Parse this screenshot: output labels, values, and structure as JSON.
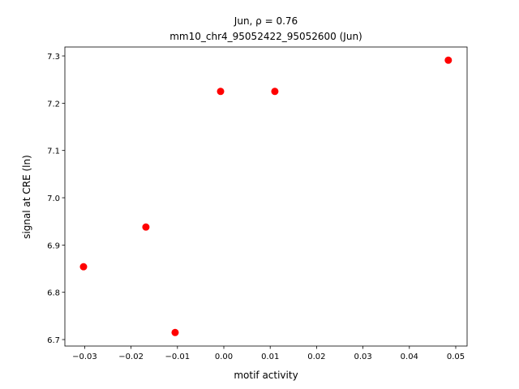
{
  "chart_data": {
    "type": "scatter",
    "title": "Jun, ρ = 0.76",
    "subtitle": "mm10_chr4_95052422_95052600 (Jun)",
    "x_label": "motif activity",
    "y_label": "signal at CRE (ln)",
    "series": [
      {
        "color": "#ff0000",
        "x": [
          -0.03025,
          -0.0168,
          -0.0105,
          -0.0007,
          0.011,
          0.0484
        ],
        "values": [
          6.854,
          6.938,
          6.715,
          7.225,
          7.225,
          7.291
        ]
      }
    ],
    "xlim": [
      -0.03427,
      0.05245
    ],
    "xticks": [
      {
        "value": -0.03,
        "label": "−0.03"
      },
      {
        "value": -0.02,
        "label": "−0.02"
      },
      {
        "value": -0.01,
        "label": "−0.01"
      },
      {
        "value": 0,
        "label": "0.00"
      },
      0.01,
      0.02,
      0.03,
      0.04,
      0.05
    ],
    "ylim": [
      6.6863,
      7.3189
    ],
    "yticks": [
      6.7,
      6.8,
      6.9,
      {
        "value": 7,
        "label": "7.0"
      },
      7.1,
      7.2,
      7.3
    ],
    "grid": false
  }
}
